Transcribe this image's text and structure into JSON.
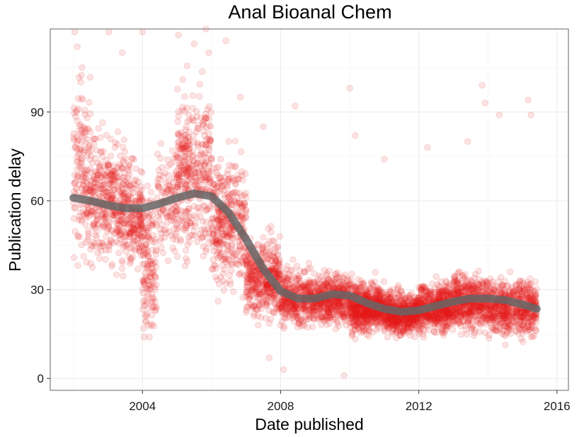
{
  "chart_data": {
    "type": "scatter",
    "title": "Anal Bioanal Chem",
    "xlabel": "Date published",
    "ylabel": "Publication delay",
    "x_ticks": [
      "2004",
      "2008",
      "2012",
      "2016"
    ],
    "y_ticks": [
      "0",
      "30",
      "60",
      "90"
    ],
    "xlim": [
      "2001-05-01",
      "2016-05-01"
    ],
    "ylim": [
      -4,
      118
    ],
    "grid": true,
    "point_color": "#e31a1c",
    "point_opacity": 0.12,
    "smooth_color": "#666666",
    "smooth_trend": [
      {
        "x": "2002-01-01",
        "y": 61
      },
      {
        "x": "2002-07-01",
        "y": 60
      },
      {
        "x": "2003-01-01",
        "y": 58.5
      },
      {
        "x": "2003-07-01",
        "y": 57.5
      },
      {
        "x": "2004-01-01",
        "y": 57.5
      },
      {
        "x": "2004-07-01",
        "y": 59
      },
      {
        "x": "2005-01-01",
        "y": 61
      },
      {
        "x": "2005-07-01",
        "y": 62.5
      },
      {
        "x": "2006-01-01",
        "y": 61.5
      },
      {
        "x": "2006-07-01",
        "y": 56
      },
      {
        "x": "2007-01-01",
        "y": 47
      },
      {
        "x": "2007-07-01",
        "y": 37
      },
      {
        "x": "2008-01-01",
        "y": 29.5
      },
      {
        "x": "2008-07-01",
        "y": 27
      },
      {
        "x": "2009-01-01",
        "y": 27
      },
      {
        "x": "2009-07-01",
        "y": 28.5
      },
      {
        "x": "2010-01-01",
        "y": 28
      },
      {
        "x": "2010-07-01",
        "y": 25.5
      },
      {
        "x": "2011-01-01",
        "y": 23.5
      },
      {
        "x": "2011-07-01",
        "y": 22.5
      },
      {
        "x": "2012-01-01",
        "y": 23
      },
      {
        "x": "2012-07-01",
        "y": 24.5
      },
      {
        "x": "2013-01-01",
        "y": 26
      },
      {
        "x": "2013-07-01",
        "y": 27
      },
      {
        "x": "2014-01-01",
        "y": 27
      },
      {
        "x": "2014-07-01",
        "y": 26.5
      },
      {
        "x": "2015-01-01",
        "y": 25
      },
      {
        "x": "2015-06-01",
        "y": 23.5
      }
    ],
    "point_clusters": [
      {
        "x_from": "2002-01-01",
        "x_to": "2002-07-01",
        "y_center": 70,
        "y_spread": 25,
        "n": 160
      },
      {
        "x_from": "2002-07-01",
        "x_to": "2003-07-01",
        "y_center": 60,
        "y_spread": 18,
        "n": 380
      },
      {
        "x_from": "2003-07-01",
        "x_to": "2004-01-01",
        "y_center": 55,
        "y_spread": 14,
        "n": 200
      },
      {
        "x_from": "2004-01-01",
        "x_to": "2004-06-01",
        "y_center": 40,
        "y_spread": 20,
        "n": 150
      },
      {
        "x_from": "2004-06-01",
        "x_to": "2005-01-01",
        "y_center": 60,
        "y_spread": 18,
        "n": 120
      },
      {
        "x_from": "2005-01-01",
        "x_to": "2006-01-01",
        "y_center": 70,
        "y_spread": 22,
        "n": 380
      },
      {
        "x_from": "2006-01-01",
        "x_to": "2007-01-01",
        "y_center": 52,
        "y_spread": 18,
        "n": 380
      },
      {
        "x_from": "2007-01-01",
        "x_to": "2008-01-01",
        "y_center": 34,
        "y_spread": 11,
        "n": 440
      },
      {
        "x_from": "2008-01-01",
        "x_to": "2009-01-01",
        "y_center": 27,
        "y_spread": 8,
        "n": 420
      },
      {
        "x_from": "2009-01-01",
        "x_to": "2010-01-01",
        "y_center": 27,
        "y_spread": 7,
        "n": 460
      },
      {
        "x_from": "2010-01-01",
        "x_to": "2011-01-01",
        "y_center": 24,
        "y_spread": 7,
        "n": 620
      },
      {
        "x_from": "2011-01-01",
        "x_to": "2012-01-01",
        "y_center": 22,
        "y_spread": 6,
        "n": 620
      },
      {
        "x_from": "2012-01-01",
        "x_to": "2013-01-01",
        "y_center": 24,
        "y_spread": 7,
        "n": 560
      },
      {
        "x_from": "2013-01-01",
        "x_to": "2014-01-01",
        "y_center": 26,
        "y_spread": 8,
        "n": 500
      },
      {
        "x_from": "2014-01-01",
        "x_to": "2015-06-01",
        "y_center": 24,
        "y_spread": 8,
        "n": 620
      }
    ],
    "outliers": [
      {
        "x": "2002-01-15",
        "y": 117
      },
      {
        "x": "2002-02-10",
        "y": 112
      },
      {
        "x": "2002-04-01",
        "y": 105
      },
      {
        "x": "2003-01-10",
        "y": 117
      },
      {
        "x": "2003-06-01",
        "y": 110
      },
      {
        "x": "2004-01-01",
        "y": 117
      },
      {
        "x": "2005-01-15",
        "y": 116
      },
      {
        "x": "2005-07-01",
        "y": 113
      },
      {
        "x": "2005-11-01",
        "y": 118
      },
      {
        "x": "2005-12-01",
        "y": 110
      },
      {
        "x": "2006-06-01",
        "y": 114
      },
      {
        "x": "2004-01-20",
        "y": 14
      },
      {
        "x": "2004-03-01",
        "y": 18
      },
      {
        "x": "2007-09-01",
        "y": 7
      },
      {
        "x": "2008-02-01",
        "y": 3
      },
      {
        "x": "2009-11-01",
        "y": 1
      },
      {
        "x": "2010-01-01",
        "y": 98
      },
      {
        "x": "2013-11-01",
        "y": 99
      },
      {
        "x": "2013-12-01",
        "y": 93
      },
      {
        "x": "2015-03-01",
        "y": 94
      },
      {
        "x": "2015-04-01",
        "y": 89
      },
      {
        "x": "2014-05-01",
        "y": 89
      },
      {
        "x": "2013-06-01",
        "y": 80
      },
      {
        "x": "2012-04-01",
        "y": 78
      },
      {
        "x": "2010-03-01",
        "y": 82
      },
      {
        "x": "2011-01-01",
        "y": 74
      },
      {
        "x": "2008-06-01",
        "y": 92
      },
      {
        "x": "2007-07-01",
        "y": 85
      },
      {
        "x": "2006-11-01",
        "y": 95
      }
    ]
  }
}
